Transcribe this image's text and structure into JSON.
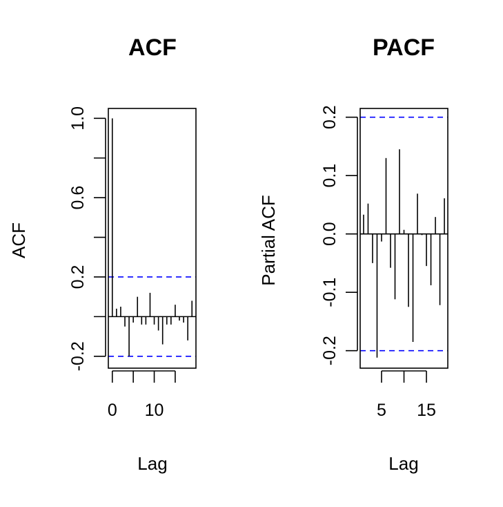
{
  "colors": {
    "background": "#ffffff",
    "foreground": "#000000",
    "confidence_line": "#0000ff"
  },
  "chart_data": [
    {
      "type": "bar",
      "title": "ACF",
      "xlabel": "Lag",
      "ylabel": "ACF",
      "xlim": [
        -0.95,
        19.95
      ],
      "ylim": [
        -0.26,
        1.05
      ],
      "x_ticks": [
        0,
        5,
        10,
        15
      ],
      "x_tick_labels": [
        "0",
        "",
        "10",
        ""
      ],
      "y_ticks": [
        -0.2,
        0.0,
        0.2,
        0.4,
        0.6,
        0.8,
        1.0
      ],
      "y_tick_labels": [
        "-0.2",
        "",
        "0.2",
        "",
        "0.6",
        "",
        "1.0"
      ],
      "confidence_bounds": [
        0.2,
        -0.2
      ],
      "zero_line": true,
      "lags": [
        0,
        1,
        2,
        3,
        4,
        5,
        6,
        7,
        8,
        9,
        10,
        11,
        12,
        13,
        14,
        15,
        16,
        17,
        18,
        19
      ],
      "values": [
        1.0,
        0.04,
        0.05,
        -0.05,
        -0.2,
        -0.03,
        0.1,
        -0.04,
        -0.04,
        0.12,
        -0.04,
        -0.07,
        -0.14,
        -0.04,
        -0.04,
        0.06,
        -0.02,
        -0.03,
        -0.12,
        0.08
      ]
    },
    {
      "type": "bar",
      "title": "PACF",
      "xlabel": "Lag",
      "ylabel": "Partial ACF",
      "xlim": [
        0.24,
        19.76
      ],
      "ylim": [
        -0.23,
        0.215
      ],
      "x_ticks": [
        5,
        10,
        15
      ],
      "x_tick_labels": [
        "5",
        "",
        "15"
      ],
      "y_ticks": [
        -0.2,
        -0.1,
        0.0,
        0.1,
        0.2
      ],
      "y_tick_labels": [
        "-0.2",
        "-0.1",
        "0.0",
        "0.1",
        "0.2"
      ],
      "confidence_bounds": [
        0.2,
        -0.2
      ],
      "zero_line": true,
      "lags": [
        1,
        2,
        3,
        4,
        5,
        6,
        7,
        8,
        9,
        10,
        11,
        12,
        13,
        14,
        15,
        16,
        17,
        18,
        19
      ],
      "values": [
        0.033,
        0.052,
        -0.05,
        -0.212,
        -0.013,
        0.13,
        -0.058,
        -0.112,
        0.145,
        0.007,
        -0.125,
        -0.185,
        0.069,
        -0.002,
        -0.055,
        -0.088,
        0.029,
        -0.122,
        0.061
      ]
    }
  ]
}
